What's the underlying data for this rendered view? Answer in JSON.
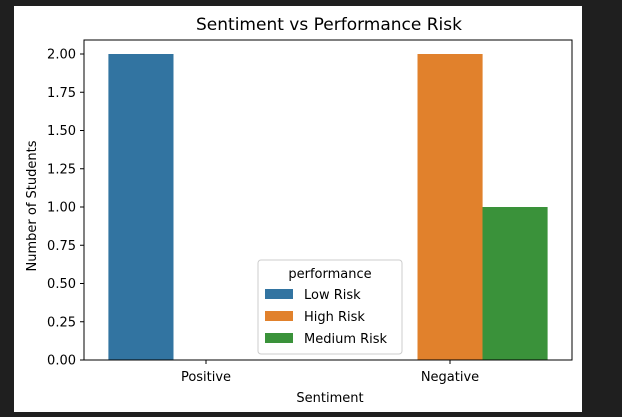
{
  "chart_data": {
    "type": "bar",
    "title": "Sentiment vs Performance Risk",
    "xlabel": "Sentiment",
    "ylabel": "Number of Students",
    "categories": [
      "Positive",
      "Negative"
    ],
    "ylim": [
      0,
      2.0
    ],
    "yticks": [
      "0.00",
      "0.25",
      "0.50",
      "0.75",
      "1.00",
      "1.25",
      "1.50",
      "1.75",
      "2.00"
    ],
    "grid": false,
    "legend": {
      "title": "performance",
      "placement": "lower-center"
    },
    "series": [
      {
        "name": "Low Risk",
        "color": "#3274a1",
        "values": [
          2,
          0
        ]
      },
      {
        "name": "High Risk",
        "color": "#e1812c",
        "values": [
          0,
          2
        ]
      },
      {
        "name": "Medium Risk",
        "color": "#3a923a",
        "values": [
          0,
          1
        ]
      }
    ]
  }
}
